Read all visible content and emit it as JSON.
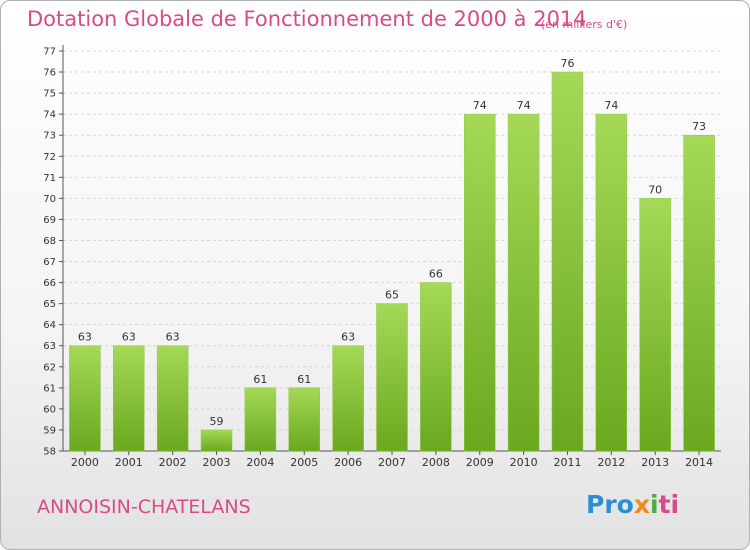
{
  "chart_data": {
    "type": "bar",
    "title": "Dotation Globale de Fonctionnement de 2000 à 2014",
    "subtitle": "(en milliers d'€)",
    "categories": [
      "2000",
      "2001",
      "2002",
      "2003",
      "2004",
      "2005",
      "2006",
      "2007",
      "2008",
      "2009",
      "2010",
      "2011",
      "2012",
      "2013",
      "2014"
    ],
    "values": [
      63,
      63,
      63,
      59,
      61,
      61,
      63,
      65,
      66,
      74,
      74,
      76,
      74,
      70,
      73
    ],
    "ylim": [
      58,
      77
    ],
    "yticks": [
      58,
      59,
      60,
      61,
      62,
      63,
      64,
      65,
      66,
      67,
      68,
      69,
      70,
      71,
      72,
      73,
      74,
      75,
      76,
      77
    ],
    "grid": true,
    "bar_color": "#7cbf2e",
    "bar_color_light": "#a5d957",
    "title_color": "#d84a8a"
  },
  "footer": {
    "commune": "ANNOISIN-CHATELANS",
    "logo": {
      "p1": "Pro",
      "p2": "x",
      "p3": "i",
      "p4": "ti"
    }
  }
}
